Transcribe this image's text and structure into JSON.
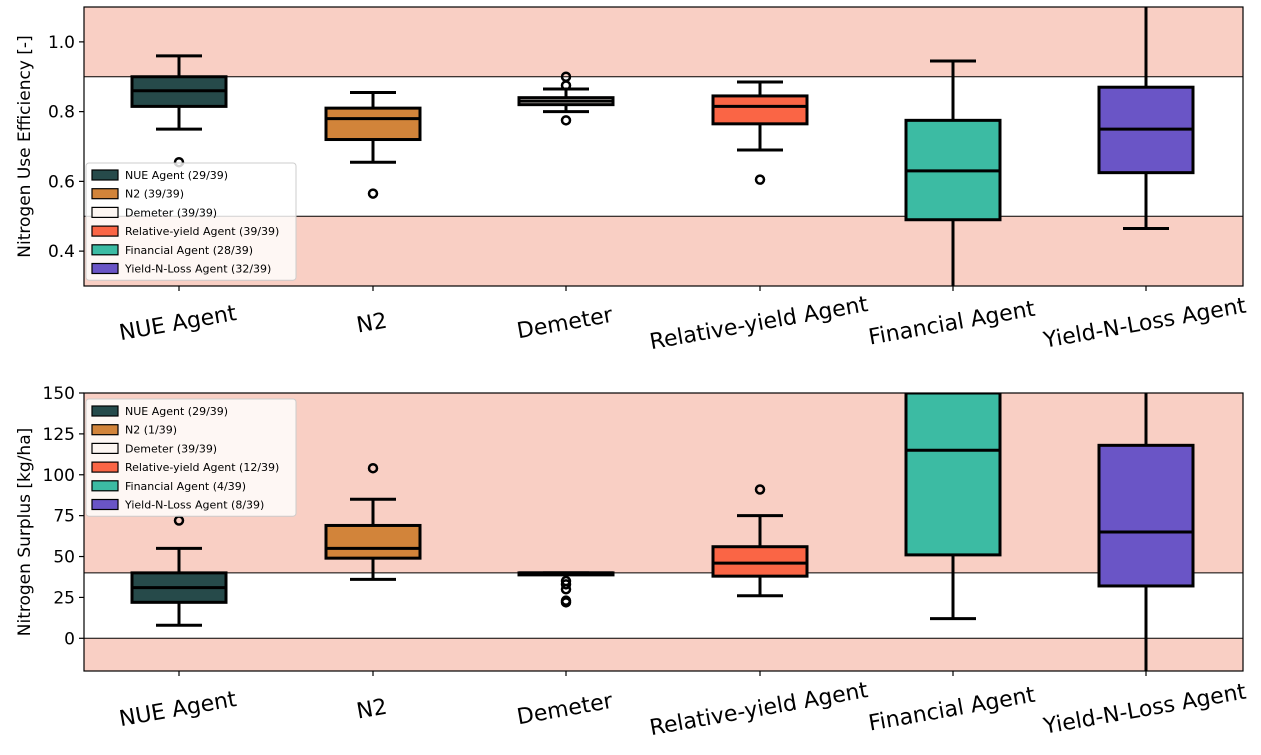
{
  "colors": {
    "band": "#f9cfc4",
    "nue_agent": "#264a4a",
    "n2": "#d2843a",
    "demeter": "#fdf6f2",
    "relative_yield": "#fa6545",
    "financial": "#3cbba3",
    "yield_n_loss": "#6a55c6"
  },
  "chart_data": [
    {
      "type": "box",
      "ylabel": "Nitrogen Use Efficiency [-]",
      "ylim": [
        0.3,
        1.1
      ],
      "yticks": [
        0.4,
        0.6,
        0.8,
        1.0
      ],
      "ytick_labels": [
        "0.4",
        "0.6",
        "0.8",
        "1.0"
      ],
      "target_band": [
        0.5,
        0.9
      ],
      "zero_line": null,
      "legend_position": "lower-left",
      "categories": [
        "NUE Agent",
        "N2",
        "Demeter",
        "Relative-yield Agent",
        "Financial Agent",
        "Yield-N-Loss Agent"
      ],
      "series": [
        {
          "name": "NUE Agent",
          "legend": "NUE Agent (29/39)",
          "color_key": "nue_agent",
          "whisker_low": 0.75,
          "q1": 0.815,
          "median": 0.86,
          "q3": 0.9,
          "whisker_high": 0.96,
          "outliers": [
            0.655
          ]
        },
        {
          "name": "N2",
          "legend": "N2 (39/39)",
          "color_key": "n2",
          "whisker_low": 0.655,
          "q1": 0.72,
          "median": 0.78,
          "q3": 0.81,
          "whisker_high": 0.855,
          "outliers": [
            0.565
          ]
        },
        {
          "name": "Demeter",
          "legend": "Demeter (39/39)",
          "color_key": "demeter",
          "whisker_low": 0.8,
          "q1": 0.82,
          "median": 0.83,
          "q3": 0.84,
          "whisker_high": 0.865,
          "outliers": [
            0.9,
            0.875,
            0.775
          ]
        },
        {
          "name": "Relative-yield Agent",
          "legend": "Relative-yield Agent (39/39)",
          "color_key": "relative_yield",
          "whisker_low": 0.69,
          "q1": 0.765,
          "median": 0.815,
          "q3": 0.845,
          "whisker_high": 0.885,
          "outliers": [
            0.605
          ]
        },
        {
          "name": "Financial Agent",
          "legend": "Financial Agent (28/39)",
          "color_key": "financial",
          "whisker_low": 0.3,
          "q1": 0.49,
          "median": 0.63,
          "q3": 0.775,
          "whisker_high": 0.945,
          "outliers": []
        },
        {
          "name": "Yield-N-Loss Agent",
          "legend": "Yield-N-Loss Agent (32/39)",
          "color_key": "yield_n_loss",
          "whisker_low": 0.465,
          "q1": 0.625,
          "median": 0.75,
          "q3": 0.87,
          "whisker_high": 1.1,
          "outliers": []
        }
      ]
    },
    {
      "type": "box",
      "ylabel": "Nitrogen Surplus [kg/ha]",
      "ylim": [
        -20,
        150
      ],
      "yticks": [
        0,
        25,
        50,
        75,
        100,
        125,
        150
      ],
      "ytick_labels": [
        "0",
        "25",
        "50",
        "75",
        "100",
        "125",
        "150"
      ],
      "target_band": [
        0,
        40
      ],
      "zero_line": 0,
      "legend_position": "upper-left",
      "categories": [
        "NUE Agent",
        "N2",
        "Demeter",
        "Relative-yield Agent",
        "Financial Agent",
        "Yield-N-Loss Agent"
      ],
      "series": [
        {
          "name": "NUE Agent",
          "legend": "NUE Agent (29/39)",
          "color_key": "nue_agent",
          "whisker_low": 8,
          "q1": 22,
          "median": 31,
          "q3": 40,
          "whisker_high": 55,
          "outliers": [
            72
          ]
        },
        {
          "name": "N2",
          "legend": "N2 (1/39)",
          "color_key": "n2",
          "whisker_low": 36,
          "q1": 49,
          "median": 55,
          "q3": 69,
          "whisker_high": 85,
          "outliers": [
            104
          ]
        },
        {
          "name": "Demeter",
          "legend": "Demeter (39/39)",
          "color_key": "demeter",
          "whisker_low": 39.5,
          "q1": 39.5,
          "median": 40,
          "q3": 40,
          "whisker_high": 40,
          "outliers": [
            35,
            33,
            30,
            23,
            22
          ]
        },
        {
          "name": "Relative-yield Agent",
          "legend": "Relative-yield Agent (12/39)",
          "color_key": "relative_yield",
          "whisker_low": 26,
          "q1": 38,
          "median": 46,
          "q3": 56,
          "whisker_high": 75,
          "outliers": [
            91
          ]
        },
        {
          "name": "Financial Agent",
          "legend": "Financial Agent (4/39)",
          "color_key": "financial",
          "whisker_low": 12,
          "q1": 51,
          "median": 115,
          "q3": 150,
          "whisker_high": 150,
          "outliers": []
        },
        {
          "name": "Yield-N-Loss Agent",
          "legend": "Yield-N-Loss Agent (8/39)",
          "color_key": "yield_n_loss",
          "whisker_low": -20,
          "q1": 32,
          "median": 65,
          "q3": 118,
          "whisker_high": 150,
          "outliers": []
        }
      ]
    }
  ]
}
